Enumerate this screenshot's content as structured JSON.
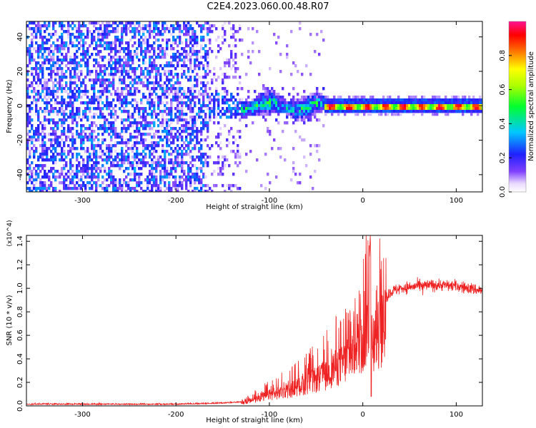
{
  "figure": {
    "title": "C2E4.2023.060.00.48.R07"
  },
  "chart_data": [
    {
      "type": "heatmap",
      "title": "C2E4.2023.060.00.48.R07",
      "xlabel": "Height of straight line (km)",
      "ylabel": "Frequency (Hz)",
      "xlim": [
        -360,
        128
      ],
      "ylim": [
        -50,
        49
      ],
      "x_ticks": [
        -300,
        -200,
        -100,
        0,
        100
      ],
      "x_tick_labels": [
        "-300",
        "-200",
        "-100",
        "0",
        "100"
      ],
      "y_ticks": [
        -40,
        -20,
        0,
        20,
        40
      ],
      "y_tick_labels": [
        "-40",
        "-20",
        "0",
        "20",
        "40"
      ],
      "colorbar": {
        "label": "Normalized spectral amplitude",
        "range": [
          0,
          1
        ],
        "ticks": [
          0.0,
          0.2,
          0.4,
          0.6,
          0.8
        ],
        "tick_labels": [
          "0.0",
          "0.2",
          "0.4",
          "0.6",
          "0.8"
        ],
        "colormap": "rainbow (white→violet→blue→cyan→green→yellow→red→magenta)"
      },
      "features": [
        {
          "region": "x from -360 to -165 km",
          "description": "broadband noise across all frequencies",
          "amplitude": 0.15
        },
        {
          "region": "x from -165 to -130 km",
          "description": "sparse noise, fading",
          "amplitude": 0.08
        },
        {
          "region": "x from -90 to -40 km",
          "description": "signal band centered near 0 Hz, width about ±6 Hz",
          "amplitude": 0.3
        },
        {
          "region": "x from -40 to 128 km",
          "description": "narrow tone at 0 Hz",
          "amplitude": 0.95
        }
      ]
    },
    {
      "type": "line",
      "xlabel": "Height of straight line (km)",
      "ylabel": "SNR (10 * v/v)",
      "y_multiplier": "(x10^4)",
      "xlim": [
        -360,
        128
      ],
      "ylim": [
        0,
        1.45
      ],
      "x_ticks": [
        -300,
        -200,
        -100,
        0,
        100
      ],
      "x_tick_labels": [
        "-300",
        "-200",
        "-100",
        "0",
        "100"
      ],
      "y_ticks": [
        0.0,
        0.2,
        0.4,
        0.6,
        0.8,
        1.0,
        1.2,
        1.4
      ],
      "y_tick_labels": [
        "0.0",
        "0.2",
        "0.4",
        "0.6",
        "0.8",
        "1.0",
        "1.2",
        "1.4"
      ],
      "color": "#ee2222",
      "series": [
        {
          "x": [
            -360,
            -300,
            -250,
            -200,
            -150,
            -130,
            -120,
            -100,
            -80,
            -60,
            -40,
            -30,
            -20,
            -10,
            0,
            5,
            8,
            10,
            15,
            20,
            30,
            40,
            60,
            80,
            100,
            128
          ],
          "values": [
            0.01,
            0.01,
            0.01,
            0.01,
            0.02,
            0.03,
            0.06,
            0.13,
            0.18,
            0.27,
            0.36,
            0.45,
            0.5,
            0.65,
            0.75,
            0.9,
            1.45,
            0.8,
            0.85,
            0.88,
            0.97,
            1.0,
            1.02,
            1.03,
            1.02,
            0.98
          ]
        }
      ]
    }
  ]
}
